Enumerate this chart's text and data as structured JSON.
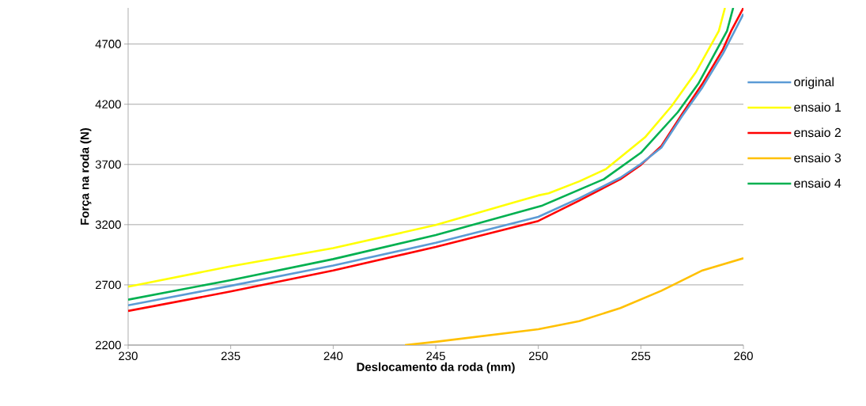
{
  "chart_data": {
    "type": "line",
    "xlabel": "Deslocamento da roda (mm)",
    "ylabel": "Força na roda (N)",
    "xlim": [
      230,
      260
    ],
    "xticks": [
      230,
      235,
      240,
      245,
      250,
      255,
      260
    ],
    "ylim": [
      2200,
      5000
    ],
    "yticks": [
      2200,
      2700,
      3200,
      3700,
      4200,
      4700
    ],
    "grid": "y",
    "legend": "right",
    "marker": "none",
    "line_style": "solid",
    "series": [
      {
        "name": "original",
        "color": "#5b9bd5",
        "x": [
          230,
          235,
          240,
          245,
          250,
          252,
          254,
          255,
          256,
          257,
          258,
          259,
          260
        ],
        "values": [
          2530,
          2692,
          2860,
          3049,
          3265,
          3420,
          3590,
          3705,
          3840,
          4100,
          4340,
          4620,
          4950
        ]
      },
      {
        "name": "ensaio 1",
        "color": "#ffff00",
        "x": [
          230,
          235,
          240,
          245,
          250,
          250.5,
          252,
          253.3,
          255.2,
          256.5,
          257.7,
          258.8,
          259.1
        ],
        "values": [
          2685,
          2854,
          3005,
          3197,
          3443,
          3460,
          3560,
          3662,
          3925,
          4185,
          4471,
          4808,
          5000
        ]
      },
      {
        "name": "ensaio 2",
        "color": "#ff0000",
        "x": [
          230,
          235,
          240,
          245,
          250,
          252,
          254,
          255,
          256,
          257,
          258,
          259,
          259.4,
          260
        ],
        "values": [
          2483,
          2645,
          2820,
          3015,
          3231,
          3400,
          3578,
          3696,
          3854,
          4117,
          4370,
          4656,
          4808,
          5000
        ]
      },
      {
        "name": "ensaio 3",
        "color": "#ffc000",
        "x": [
          243.5,
          245,
          250,
          252,
          254,
          256,
          258,
          260
        ],
        "values": [
          2200,
          2227,
          2331,
          2399,
          2507,
          2651,
          2820,
          2921
        ]
      },
      {
        "name": "ensaio 4",
        "color": "#00b050",
        "x": [
          230,
          235,
          240,
          245,
          250.2,
          253.2,
          255,
          256.8,
          257.8,
          259.2,
          259.5
        ],
        "values": [
          2577,
          2739,
          2914,
          3113,
          3359,
          3578,
          3797,
          4134,
          4370,
          4808,
          5000
        ]
      }
    ]
  }
}
